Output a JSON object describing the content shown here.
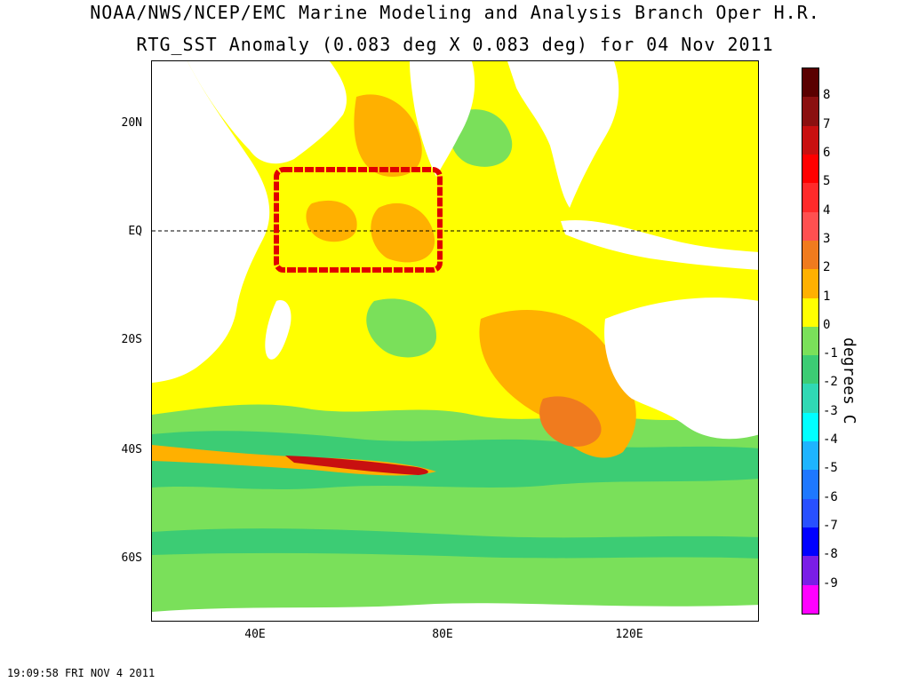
{
  "titles": {
    "line1": "NOAA/NWS/NCEP/EMC Marine Modeling and Analysis Branch Oper H.R.",
    "line2": "RTG_SST Anomaly (0.083 deg X 0.083 deg) for 04 Nov 2011"
  },
  "map": {
    "lat_labels": [
      "20N",
      "EQ",
      "20S",
      "40S",
      "60S"
    ],
    "lon_labels": [
      "40E",
      "80E",
      "120E"
    ],
    "highlight_box_color": "#e00000",
    "land_color": "#ffffff"
  },
  "colorbar": {
    "unit_label": "degrees C",
    "tick_labels": [
      "8",
      "7",
      "6",
      "5",
      "4",
      "3",
      "2",
      "1",
      "0",
      "-1",
      "-2",
      "-3",
      "-4",
      "-5",
      "-6",
      "-7",
      "-8",
      "-9"
    ],
    "colors": [
      "#5a0000",
      "#8b1010",
      "#c81010",
      "#ff0000",
      "#ff2a2a",
      "#ff5050",
      "#f07b1e",
      "#ffb000",
      "#ffff00",
      "#7ae05a",
      "#3ccc74",
      "#30d8b4",
      "#00ffff",
      "#1eb4ff",
      "#1e78ff",
      "#2850ff",
      "#0000ff",
      "#7a1ee6",
      "#ff00ff"
    ]
  },
  "timestamp": "19:09:58  FRI NOV 4 2011"
}
